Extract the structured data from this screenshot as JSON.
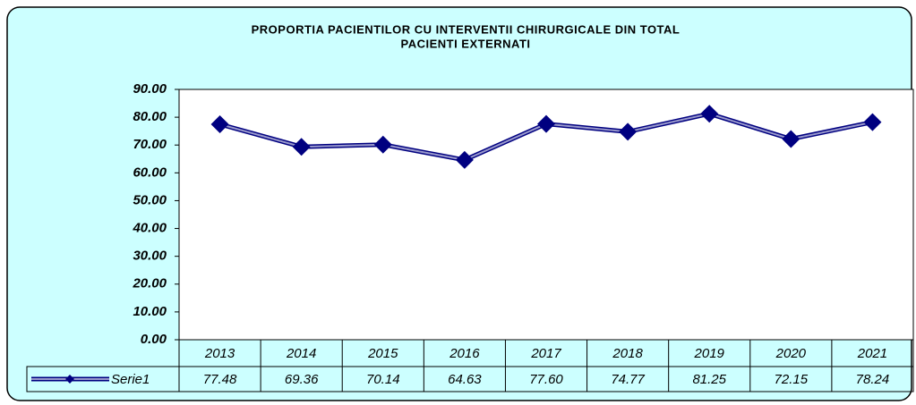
{
  "chart_data": {
    "type": "line",
    "title": [
      "PROPORTIA PACIENTILOR CU INTERVENTII CHIRURGICALE DIN TOTAL",
      "PACIENTI EXTERNATI"
    ],
    "categories": [
      "2013",
      "2014",
      "2015",
      "2016",
      "2017",
      "2018",
      "2019",
      "2020",
      "2021"
    ],
    "series": [
      {
        "name": "Serie1",
        "color": "#000080",
        "values": [
          77.48,
          69.36,
          70.14,
          64.63,
          77.6,
          74.77,
          81.25,
          72.15,
          78.24
        ],
        "value_labels": [
          "77.48",
          "69.36",
          "70.14",
          "64.63",
          "77.60",
          "74.77",
          "81.25",
          "72.15",
          "78.24"
        ]
      }
    ],
    "ylim": [
      0,
      90
    ],
    "yticks": [
      {
        "value": 0,
        "label": "0.00"
      },
      {
        "value": 10,
        "label": "10.00"
      },
      {
        "value": 20,
        "label": "20.00"
      },
      {
        "value": 30,
        "label": "30.00"
      },
      {
        "value": 40,
        "label": "40.00"
      },
      {
        "value": 50,
        "label": "50.00"
      },
      {
        "value": 60,
        "label": "60.00"
      },
      {
        "value": 70,
        "label": "70.00"
      },
      {
        "value": 80,
        "label": "80.00"
      },
      {
        "value": 90,
        "label": "90.00"
      }
    ],
    "grid": false
  }
}
